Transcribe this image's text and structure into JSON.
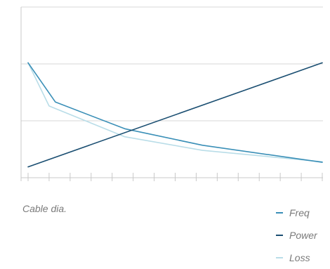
{
  "chart_data": {
    "type": "line",
    "title": "",
    "xlabel": "Cable dia.",
    "ylabel": "",
    "x": [
      0,
      1,
      2,
      3,
      4,
      5,
      6,
      7,
      8,
      9,
      10,
      11,
      12,
      13,
      14
    ],
    "ylim": [
      0,
      3
    ],
    "grid": true,
    "legend_position": "bottom-right",
    "series": [
      {
        "name": "Freq",
        "color": "#3a8fb7",
        "points": [
          [
            0,
            2.02
          ],
          [
            1.3,
            1.33
          ],
          [
            4.6,
            0.86
          ],
          [
            8.3,
            0.57
          ],
          [
            14,
            0.27
          ]
        ]
      },
      {
        "name": "Power",
        "color": "#1b4f72",
        "points": [
          [
            0,
            0.19
          ],
          [
            14,
            2.02
          ]
        ]
      },
      {
        "name": "Loss",
        "color": "#b9dde8",
        "points": [
          [
            0,
            2.02
          ],
          [
            1.0,
            1.26
          ],
          [
            4.6,
            0.72
          ],
          [
            8.3,
            0.48
          ],
          [
            14,
            0.28
          ]
        ]
      }
    ]
  }
}
